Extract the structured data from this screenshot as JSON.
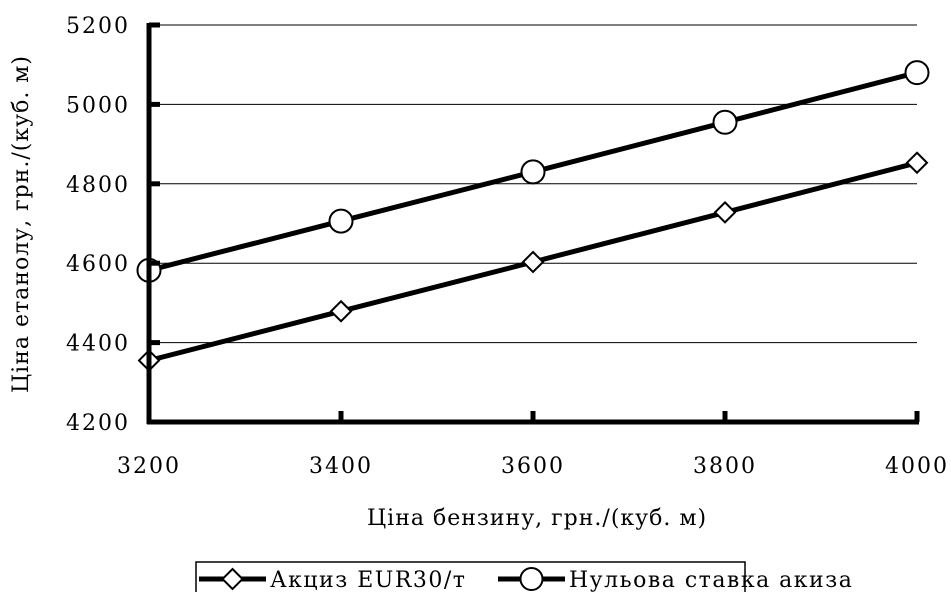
{
  "chart_data": {
    "type": "line",
    "title": "",
    "xlabel": "Ціна бензину, грн./(куб. м)",
    "ylabel": "Ціна етанолу, грн./(куб. м)",
    "xlim": [
      3200,
      4000
    ],
    "ylim": [
      4200,
      5200
    ],
    "x_ticks": [
      "3200",
      "3400",
      "3600",
      "3800",
      "4000"
    ],
    "y_ticks": [
      "4200",
      "4400",
      "4600",
      "4800",
      "5000",
      "5200"
    ],
    "grid": "horizontal",
    "legend_position": "bottom",
    "x": [
      3200,
      3400,
      3600,
      3800,
      4000
    ],
    "series": [
      {
        "name": "Акциз EUR30/т",
        "marker": "diamond",
        "color": "#000000",
        "values": [
          4355,
          4479,
          4603,
          4728,
          4853
        ]
      },
      {
        "name": "Нульова ставка акиза",
        "marker": "circle",
        "color": "#000000",
        "values": [
          4582,
          4706,
          4830,
          4955,
          5080
        ]
      }
    ]
  }
}
